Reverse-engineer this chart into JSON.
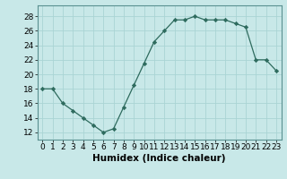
{
  "x": [
    0,
    1,
    2,
    3,
    4,
    5,
    6,
    7,
    8,
    9,
    10,
    11,
    12,
    13,
    14,
    15,
    16,
    17,
    18,
    19,
    20,
    21,
    22,
    23
  ],
  "y": [
    18,
    18,
    16,
    15,
    14,
    13,
    12,
    12.5,
    15.5,
    18.5,
    21.5,
    24.5,
    26,
    27.5,
    27.5,
    28,
    27.5,
    27.5,
    27.5,
    27,
    26.5,
    22,
    22,
    20.5
  ],
  "line_color": "#2e6b5e",
  "marker_color": "#2e6b5e",
  "bg_color": "#c8e8e8",
  "grid_color": "#aad4d4",
  "xlabel": "Humidex (Indice chaleur)",
  "xlim": [
    -0.5,
    23.5
  ],
  "ylim": [
    11,
    29.5
  ],
  "yticks": [
    12,
    14,
    16,
    18,
    20,
    22,
    24,
    26,
    28
  ],
  "xticks": [
    0,
    1,
    2,
    3,
    4,
    5,
    6,
    7,
    8,
    9,
    10,
    11,
    12,
    13,
    14,
    15,
    16,
    17,
    18,
    19,
    20,
    21,
    22,
    23
  ],
  "xtick_labels": [
    "0",
    "1",
    "2",
    "3",
    "4",
    "5",
    "6",
    "7",
    "8",
    "9",
    "10",
    "11",
    "12",
    "13",
    "14",
    "15",
    "16",
    "17",
    "18",
    "19",
    "20",
    "21",
    "22",
    "23"
  ],
  "font_size": 6.5,
  "xlabel_fontsize": 7.5
}
